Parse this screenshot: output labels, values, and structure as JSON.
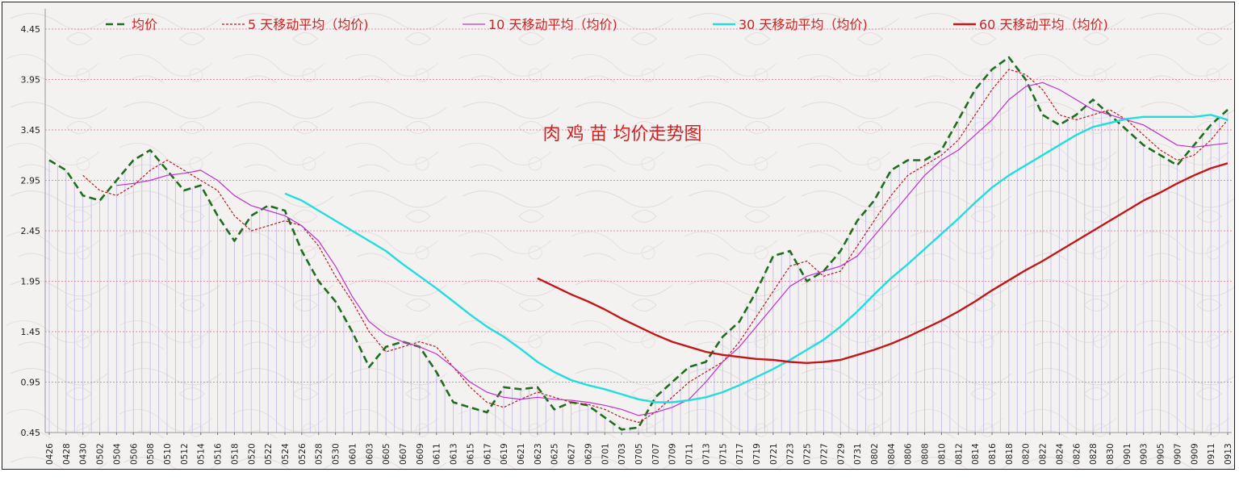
{
  "chart_data": {
    "type": "line",
    "title": "肉 鸡 苗 均价走势图",
    "xlabel": "",
    "ylabel": "",
    "ylim": [
      0.45,
      4.65
    ],
    "yticks": [
      "4.45",
      "3.95",
      "3.45",
      "2.95",
      "2.45",
      "1.95",
      "1.45",
      "0.95",
      "0.45"
    ],
    "ytick_values": [
      4.45,
      3.95,
      3.45,
      2.95,
      2.45,
      1.95,
      1.45,
      0.95,
      0.45
    ],
    "grid": true,
    "legend_position": "top",
    "x_tick_labels": [
      "0426",
      "0428",
      "0430",
      "0502",
      "0504",
      "0506",
      "0508",
      "0510",
      "0512",
      "0514",
      "0516",
      "0518",
      "0520",
      "0522",
      "0524",
      "0526",
      "0528",
      "0530",
      "0601",
      "0603",
      "0605",
      "0607",
      "0609",
      "0611",
      "0613",
      "0615",
      "0617",
      "0619",
      "0621",
      "0623",
      "0625",
      "0627",
      "0629",
      "0701",
      "0703",
      "0705",
      "0707",
      "0709",
      "0711",
      "0713",
      "0715",
      "0717",
      "0719",
      "0721",
      "0723",
      "0725",
      "0727",
      "0729",
      "0731",
      "0802",
      "0804",
      "0806",
      "0808",
      "0810",
      "0812",
      "0814",
      "0816",
      "0818",
      "0820",
      "0822",
      "0824",
      "0826",
      "0828",
      "0830",
      "0901",
      "0903",
      "0905",
      "0907",
      "0909",
      "0911",
      "0913"
    ],
    "series": [
      {
        "name": "均价",
        "color": "#1e6e1e",
        "style": "dashed",
        "points": [
          [
            0,
            3.15
          ],
          [
            1,
            3.05
          ],
          [
            2,
            2.8
          ],
          [
            3,
            2.75
          ],
          [
            4,
            2.95
          ],
          [
            5,
            3.15
          ],
          [
            6,
            3.25
          ],
          [
            7,
            3.05
          ],
          [
            8,
            2.85
          ],
          [
            9,
            2.9
          ],
          [
            10,
            2.6
          ],
          [
            11,
            2.35
          ],
          [
            12,
            2.6
          ],
          [
            13,
            2.7
          ],
          [
            14,
            2.65
          ],
          [
            15,
            2.25
          ],
          [
            16,
            1.95
          ],
          [
            17,
            1.75
          ],
          [
            18,
            1.45
          ],
          [
            19,
            1.1
          ],
          [
            20,
            1.3
          ],
          [
            21,
            1.35
          ],
          [
            22,
            1.3
          ],
          [
            23,
            1.05
          ],
          [
            24,
            0.75
          ],
          [
            25,
            0.7
          ],
          [
            26,
            0.65
          ],
          [
            27,
            0.9
          ],
          [
            28,
            0.88
          ],
          [
            29,
            0.9
          ],
          [
            30,
            0.68
          ],
          [
            31,
            0.75
          ],
          [
            32,
            0.72
          ],
          [
            33,
            0.6
          ],
          [
            34,
            0.48
          ],
          [
            35,
            0.5
          ],
          [
            36,
            0.8
          ],
          [
            37,
            0.95
          ],
          [
            38,
            1.1
          ],
          [
            39,
            1.15
          ],
          [
            40,
            1.4
          ],
          [
            41,
            1.55
          ],
          [
            42,
            1.85
          ],
          [
            43,
            2.2
          ],
          [
            44,
            2.25
          ],
          [
            45,
            1.95
          ],
          [
            46,
            2.05
          ],
          [
            47,
            2.25
          ],
          [
            48,
            2.55
          ],
          [
            49,
            2.75
          ],
          [
            50,
            3.05
          ],
          [
            51,
            3.15
          ],
          [
            52,
            3.15
          ],
          [
            53,
            3.25
          ],
          [
            54,
            3.55
          ],
          [
            55,
            3.85
          ],
          [
            56,
            4.05
          ],
          [
            57,
            4.17
          ],
          [
            58,
            3.95
          ],
          [
            59,
            3.6
          ],
          [
            60,
            3.5
          ],
          [
            61,
            3.6
          ],
          [
            62,
            3.75
          ],
          [
            63,
            3.6
          ],
          [
            64,
            3.45
          ],
          [
            65,
            3.3
          ],
          [
            66,
            3.2
          ],
          [
            67,
            3.1
          ],
          [
            68,
            3.3
          ],
          [
            69,
            3.5
          ],
          [
            70,
            3.65
          ]
        ]
      },
      {
        "name": "5 天移动平均（均价)",
        "color": "#c01818",
        "style": "dotted",
        "points": [
          [
            2,
            3.0
          ],
          [
            3,
            2.85
          ],
          [
            4,
            2.8
          ],
          [
            5,
            2.9
          ],
          [
            6,
            3.05
          ],
          [
            7,
            3.15
          ],
          [
            8,
            3.05
          ],
          [
            9,
            2.95
          ],
          [
            10,
            2.85
          ],
          [
            11,
            2.6
          ],
          [
            12,
            2.45
          ],
          [
            13,
            2.5
          ],
          [
            14,
            2.55
          ],
          [
            15,
            2.5
          ],
          [
            16,
            2.3
          ],
          [
            17,
            2.0
          ],
          [
            18,
            1.75
          ],
          [
            19,
            1.45
          ],
          [
            20,
            1.25
          ],
          [
            21,
            1.3
          ],
          [
            22,
            1.35
          ],
          [
            23,
            1.3
          ],
          [
            24,
            1.1
          ],
          [
            25,
            0.9
          ],
          [
            26,
            0.75
          ],
          [
            27,
            0.7
          ],
          [
            28,
            0.78
          ],
          [
            29,
            0.85
          ],
          [
            30,
            0.8
          ],
          [
            31,
            0.75
          ],
          [
            32,
            0.73
          ],
          [
            33,
            0.68
          ],
          [
            34,
            0.6
          ],
          [
            35,
            0.55
          ],
          [
            36,
            0.65
          ],
          [
            37,
            0.8
          ],
          [
            38,
            0.95
          ],
          [
            39,
            1.05
          ],
          [
            40,
            1.15
          ],
          [
            41,
            1.35
          ],
          [
            42,
            1.6
          ],
          [
            43,
            1.85
          ],
          [
            44,
            2.1
          ],
          [
            45,
            2.15
          ],
          [
            46,
            2.0
          ],
          [
            47,
            2.05
          ],
          [
            48,
            2.3
          ],
          [
            49,
            2.55
          ],
          [
            50,
            2.8
          ],
          [
            51,
            3.0
          ],
          [
            52,
            3.1
          ],
          [
            53,
            3.2
          ],
          [
            54,
            3.35
          ],
          [
            55,
            3.6
          ],
          [
            56,
            3.85
          ],
          [
            57,
            4.05
          ],
          [
            58,
            4.0
          ],
          [
            59,
            3.85
          ],
          [
            60,
            3.6
          ],
          [
            61,
            3.55
          ],
          [
            62,
            3.6
          ],
          [
            63,
            3.65
          ],
          [
            64,
            3.55
          ],
          [
            65,
            3.4
          ],
          [
            66,
            3.25
          ],
          [
            67,
            3.15
          ],
          [
            68,
            3.2
          ],
          [
            69,
            3.35
          ],
          [
            70,
            3.55
          ]
        ]
      },
      {
        "name": "10 天移动平均（均价)",
        "color": "#c030d0",
        "style": "solid",
        "points": [
          [
            4,
            2.9
          ],
          [
            5,
            2.92
          ],
          [
            6,
            2.95
          ],
          [
            7,
            3.0
          ],
          [
            8,
            3.02
          ],
          [
            9,
            3.05
          ],
          [
            10,
            2.95
          ],
          [
            11,
            2.8
          ],
          [
            12,
            2.7
          ],
          [
            13,
            2.65
          ],
          [
            14,
            2.6
          ],
          [
            15,
            2.5
          ],
          [
            16,
            2.35
          ],
          [
            17,
            2.1
          ],
          [
            18,
            1.8
          ],
          [
            19,
            1.55
          ],
          [
            20,
            1.42
          ],
          [
            21,
            1.35
          ],
          [
            22,
            1.3
          ],
          [
            23,
            1.23
          ],
          [
            24,
            1.1
          ],
          [
            25,
            0.95
          ],
          [
            26,
            0.85
          ],
          [
            27,
            0.8
          ],
          [
            28,
            0.78
          ],
          [
            29,
            0.8
          ],
          [
            30,
            0.78
          ],
          [
            31,
            0.77
          ],
          [
            32,
            0.75
          ],
          [
            33,
            0.72
          ],
          [
            34,
            0.68
          ],
          [
            35,
            0.62
          ],
          [
            36,
            0.65
          ],
          [
            37,
            0.7
          ],
          [
            38,
            0.78
          ],
          [
            39,
            0.95
          ],
          [
            40,
            1.15
          ],
          [
            41,
            1.3
          ],
          [
            42,
            1.5
          ],
          [
            43,
            1.7
          ],
          [
            44,
            1.9
          ],
          [
            45,
            2.0
          ],
          [
            46,
            2.05
          ],
          [
            47,
            2.1
          ],
          [
            48,
            2.2
          ],
          [
            49,
            2.4
          ],
          [
            50,
            2.6
          ],
          [
            51,
            2.8
          ],
          [
            52,
            3.0
          ],
          [
            53,
            3.15
          ],
          [
            54,
            3.25
          ],
          [
            55,
            3.4
          ],
          [
            56,
            3.55
          ],
          [
            57,
            3.75
          ],
          [
            58,
            3.88
          ],
          [
            59,
            3.92
          ],
          [
            60,
            3.85
          ],
          [
            61,
            3.75
          ],
          [
            62,
            3.65
          ],
          [
            63,
            3.6
          ],
          [
            64,
            3.55
          ],
          [
            65,
            3.5
          ],
          [
            66,
            3.4
          ],
          [
            67,
            3.3
          ],
          [
            68,
            3.28
          ],
          [
            69,
            3.3
          ],
          [
            70,
            3.32
          ]
        ]
      },
      {
        "name": "30 天移动平均（均价)",
        "color": "#22dde0",
        "style": "solid",
        "points": [
          [
            14,
            2.82
          ],
          [
            15,
            2.75
          ],
          [
            16,
            2.65
          ],
          [
            17,
            2.55
          ],
          [
            18,
            2.45
          ],
          [
            19,
            2.35
          ],
          [
            20,
            2.25
          ],
          [
            21,
            2.12
          ],
          [
            22,
            2.0
          ],
          [
            23,
            1.88
          ],
          [
            24,
            1.75
          ],
          [
            25,
            1.62
          ],
          [
            26,
            1.5
          ],
          [
            27,
            1.4
          ],
          [
            28,
            1.28
          ],
          [
            29,
            1.15
          ],
          [
            30,
            1.05
          ],
          [
            31,
            0.97
          ],
          [
            32,
            0.92
          ],
          [
            33,
            0.88
          ],
          [
            34,
            0.83
          ],
          [
            35,
            0.78
          ],
          [
            36,
            0.75
          ],
          [
            37,
            0.75
          ],
          [
            38,
            0.77
          ],
          [
            39,
            0.8
          ],
          [
            40,
            0.85
          ],
          [
            41,
            0.92
          ],
          [
            42,
            1.0
          ],
          [
            43,
            1.08
          ],
          [
            44,
            1.17
          ],
          [
            45,
            1.27
          ],
          [
            46,
            1.37
          ],
          [
            47,
            1.5
          ],
          [
            48,
            1.65
          ],
          [
            49,
            1.82
          ],
          [
            50,
            1.98
          ],
          [
            51,
            2.12
          ],
          [
            52,
            2.27
          ],
          [
            53,
            2.42
          ],
          [
            54,
            2.57
          ],
          [
            55,
            2.73
          ],
          [
            56,
            2.88
          ],
          [
            57,
            3.0
          ],
          [
            58,
            3.1
          ],
          [
            59,
            3.2
          ],
          [
            60,
            3.3
          ],
          [
            61,
            3.4
          ],
          [
            62,
            3.48
          ],
          [
            63,
            3.52
          ],
          [
            64,
            3.56
          ],
          [
            65,
            3.58
          ],
          [
            66,
            3.58
          ],
          [
            67,
            3.58
          ],
          [
            68,
            3.58
          ],
          [
            69,
            3.6
          ],
          [
            70,
            3.55
          ]
        ]
      },
      {
        "name": "60 天移动平均（均价)",
        "color": "#c01818",
        "style": "solid",
        "points": [
          [
            29,
            1.98
          ],
          [
            30,
            1.9
          ],
          [
            31,
            1.82
          ],
          [
            32,
            1.75
          ],
          [
            33,
            1.67
          ],
          [
            34,
            1.58
          ],
          [
            35,
            1.5
          ],
          [
            36,
            1.42
          ],
          [
            37,
            1.35
          ],
          [
            38,
            1.3
          ],
          [
            39,
            1.25
          ],
          [
            40,
            1.22
          ],
          [
            41,
            1.2
          ],
          [
            42,
            1.18
          ],
          [
            43,
            1.17
          ],
          [
            44,
            1.15
          ],
          [
            45,
            1.14
          ],
          [
            46,
            1.15
          ],
          [
            47,
            1.17
          ],
          [
            48,
            1.22
          ],
          [
            49,
            1.27
          ],
          [
            50,
            1.33
          ],
          [
            51,
            1.4
          ],
          [
            52,
            1.48
          ],
          [
            53,
            1.56
          ],
          [
            54,
            1.65
          ],
          [
            55,
            1.75
          ],
          [
            56,
            1.86
          ],
          [
            57,
            1.96
          ],
          [
            58,
            2.06
          ],
          [
            59,
            2.15
          ],
          [
            60,
            2.25
          ],
          [
            61,
            2.35
          ],
          [
            62,
            2.45
          ],
          [
            63,
            2.55
          ],
          [
            64,
            2.65
          ],
          [
            65,
            2.75
          ],
          [
            66,
            2.83
          ],
          [
            67,
            2.92
          ],
          [
            68,
            3.0
          ],
          [
            69,
            3.07
          ],
          [
            70,
            3.12
          ]
        ]
      }
    ]
  }
}
